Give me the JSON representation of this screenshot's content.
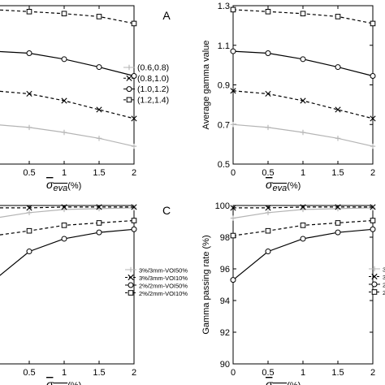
{
  "chart_data": [
    {
      "type": "line",
      "panel_label": "A",
      "xlabel": "σ_eva (%)",
      "x": [
        0,
        0.5,
        1,
        1.5,
        2
      ],
      "x_tick_labels": [
        "0.5",
        "1",
        "1.5",
        "2"
      ],
      "ylim": [
        0.5,
        1.3
      ],
      "legend_position": "right",
      "series": [
        {
          "name": "(0.6,0.8)",
          "marker": "plus",
          "style": "solid",
          "color": "#b4b4b4",
          "values": [
            0.7,
            0.685,
            0.66,
            0.63,
            0.59
          ]
        },
        {
          "name": "(0.8,1.0)",
          "marker": "x",
          "style": "dashed",
          "color": "#000000",
          "values": [
            0.87,
            0.855,
            0.82,
            0.775,
            0.73
          ]
        },
        {
          "name": "(1.0,1.2)",
          "marker": "circle",
          "style": "solid",
          "color": "#000000",
          "values": [
            1.07,
            1.06,
            1.03,
            0.99,
            0.945
          ]
        },
        {
          "name": "(1.2,1.4)",
          "marker": "square",
          "style": "dashed",
          "color": "#000000",
          "values": [
            1.28,
            1.27,
            1.26,
            1.245,
            1.21
          ]
        }
      ]
    },
    {
      "type": "line",
      "panel_label": "",
      "xlabel": "σ_eva (%)",
      "ylabel": "Average gamma value",
      "x": [
        0,
        0.5,
        1,
        1.5,
        2
      ],
      "x_tick_labels": [
        "0",
        "0.5",
        "1",
        "1.5",
        "2"
      ],
      "y_tick_labels": [
        "0.5",
        "0.7",
        "0.9",
        "1.1",
        "1.3"
      ],
      "ylim": [
        0.5,
        1.3
      ],
      "series": [
        {
          "marker": "plus",
          "style": "solid",
          "color": "#b4b4b4",
          "values": [
            0.7,
            0.685,
            0.66,
            0.63,
            0.59
          ]
        },
        {
          "marker": "x",
          "style": "dashed",
          "color": "#000000",
          "values": [
            0.87,
            0.855,
            0.82,
            0.775,
            0.73
          ]
        },
        {
          "marker": "circle",
          "style": "solid",
          "color": "#000000",
          "values": [
            1.07,
            1.06,
            1.03,
            0.99,
            0.945
          ]
        },
        {
          "marker": "square",
          "style": "dashed",
          "color": "#000000",
          "values": [
            1.28,
            1.27,
            1.26,
            1.245,
            1.21
          ]
        }
      ]
    },
    {
      "type": "line",
      "panel_label": "C",
      "xlabel": "σ_eva (%)",
      "x": [
        0,
        0.5,
        1,
        1.5,
        2
      ],
      "x_tick_labels": [
        "0.5",
        "1",
        "1.5",
        "2"
      ],
      "ylim": [
        90,
        100
      ],
      "legend_position": "right",
      "series": [
        {
          "name": "3%/3mm-VOI50%",
          "marker": "plus",
          "style": "solid",
          "color": "#b4b4b4",
          "values": [
            99.2,
            99.55,
            99.75,
            99.8,
            99.85
          ]
        },
        {
          "name": "3%/3mm-VOI10%",
          "marker": "x",
          "style": "dashed",
          "color": "#000000",
          "values": [
            99.85,
            99.85,
            99.9,
            99.9,
            99.9
          ]
        },
        {
          "name": "2%/2mm-VOI50%",
          "marker": "circle",
          "style": "solid",
          "color": "#000000",
          "values": [
            95.3,
            97.1,
            97.9,
            98.3,
            98.5
          ]
        },
        {
          "name": "2%/2mm-VOI10%",
          "marker": "square",
          "style": "dashed",
          "color": "#000000",
          "values": [
            98.1,
            98.4,
            98.75,
            98.9,
            99.05
          ]
        }
      ]
    },
    {
      "type": "line",
      "panel_label": "",
      "xlabel": "σ_eva (%)",
      "ylabel": "Gamma passing rate (%)",
      "x": [
        0,
        0.5,
        1,
        1.5,
        2
      ],
      "x_tick_labels": [
        "0",
        "0.5",
        "1",
        "1.5",
        "2"
      ],
      "y_tick_labels": [
        "90",
        "92",
        "94",
        "96",
        "98",
        "100"
      ],
      "ylim": [
        90,
        100
      ],
      "legend_position": "right",
      "legend_visible_text": [
        "3'",
        "3'",
        "2'",
        "2'"
      ],
      "series": [
        {
          "marker": "plus",
          "style": "solid",
          "color": "#b4b4b4",
          "values": [
            99.2,
            99.55,
            99.75,
            99.8,
            99.85
          ]
        },
        {
          "marker": "x",
          "style": "dashed",
          "color": "#000000",
          "values": [
            99.85,
            99.85,
            99.9,
            99.9,
            99.9
          ]
        },
        {
          "marker": "circle",
          "style": "solid",
          "color": "#000000",
          "values": [
            95.3,
            97.1,
            97.9,
            98.3,
            98.5
          ]
        },
        {
          "marker": "square",
          "style": "dashed",
          "color": "#000000",
          "values": [
            98.1,
            98.4,
            98.75,
            98.9,
            99.05
          ]
        }
      ]
    }
  ]
}
